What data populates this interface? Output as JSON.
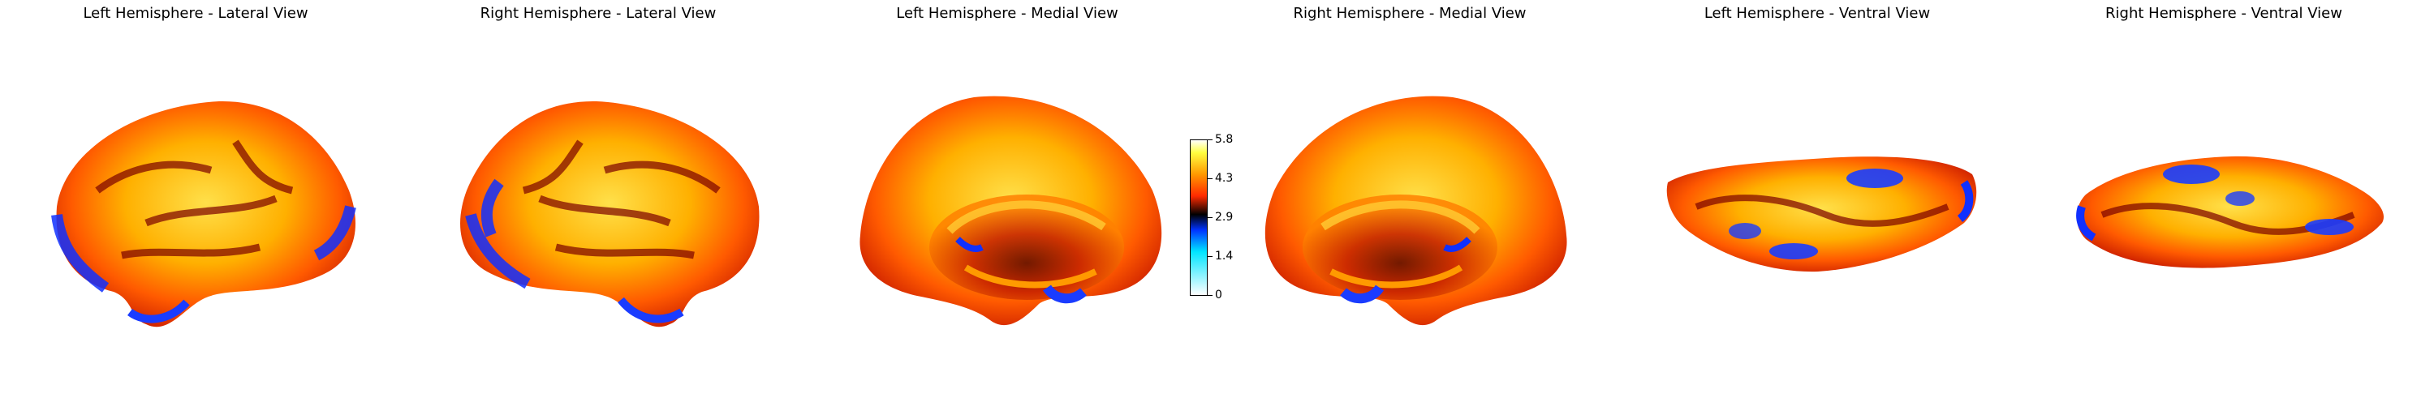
{
  "panels": [
    {
      "title": "Left Hemisphere - Lateral View"
    },
    {
      "title": "Right Hemisphere - Lateral View"
    },
    {
      "title": "Left Hemisphere - Medial View"
    },
    {
      "title": "Right Hemisphere - Medial View"
    },
    {
      "title": "Left Hemisphere - Ventral View"
    },
    {
      "title": "Right Hemisphere - Ventral View"
    }
  ],
  "colorbar": {
    "ticks": [
      "5.8",
      "4.3",
      "2.9",
      "1.4",
      "0"
    ],
    "colors": [
      "#ffffff",
      "#ffff40",
      "#ff9900",
      "#ff2a00",
      "#000000",
      "#0033ff",
      "#00e5ff",
      "#ffffff"
    ]
  }
}
